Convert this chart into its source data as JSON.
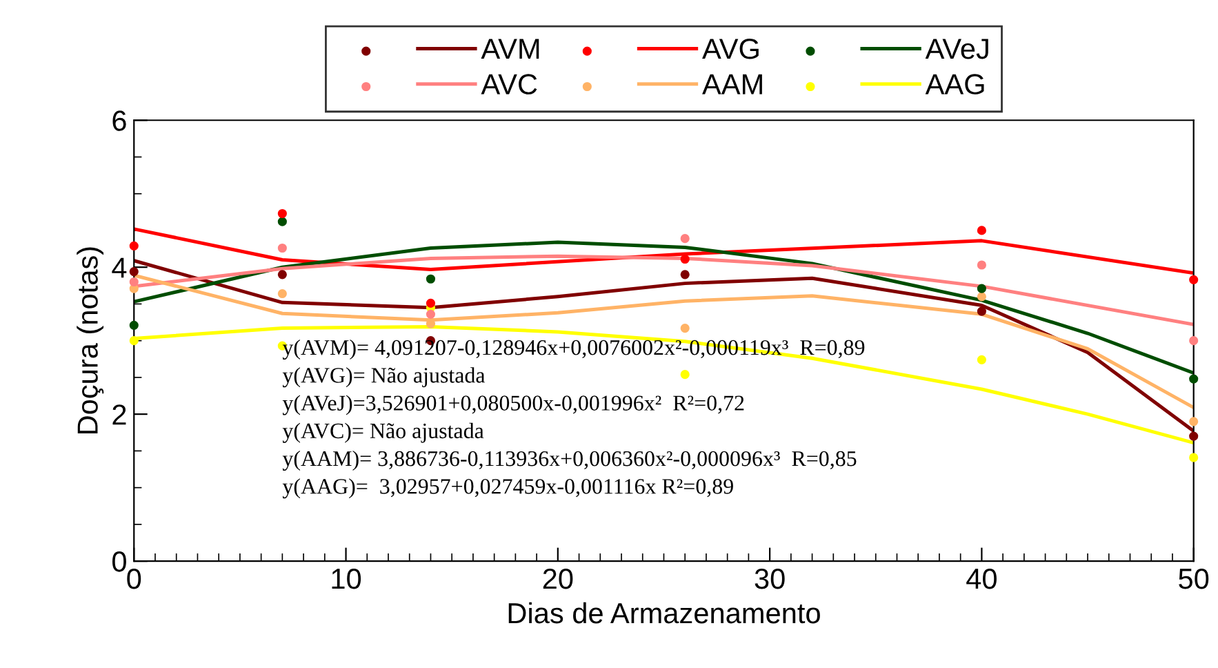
{
  "chart_data": {
    "type": "line",
    "xlabel": "Dias de Armazenamento",
    "ylabel": "Doçura (notas)",
    "xlim": [
      0,
      50
    ],
    "xticks": [
      0,
      10,
      20,
      30,
      40,
      50
    ],
    "ylim": [
      0,
      6
    ],
    "yticks": [
      0,
      2,
      4,
      6
    ],
    "grid": false,
    "legend": "top",
    "marker": "none",
    "series": [
      {
        "type": "scatter",
        "marker": "circle",
        "color": "#800000",
        "x": [
          0,
          7,
          14,
          26,
          40,
          50
        ],
        "values": [
          3.94,
          3.9,
          3.0,
          3.9,
          3.4,
          1.7
        ]
      },
      {
        "type": "scatter",
        "marker": "circle",
        "color": "#ff0000",
        "x": [
          0,
          7,
          14,
          26,
          40,
          50
        ],
        "values": [
          4.29,
          4.73,
          3.51,
          4.11,
          4.5,
          3.83
        ]
      },
      {
        "type": "scatter",
        "marker": "circle",
        "color": "#004d00",
        "x": [
          0,
          7,
          14,
          26,
          40,
          50
        ],
        "values": [
          3.21,
          4.62,
          3.84,
          null,
          3.71,
          2.48
        ]
      },
      {
        "type": "scatter",
        "marker": "circle",
        "color": "#ff8080",
        "x": [
          0,
          7,
          14,
          26,
          40,
          50
        ],
        "values": [
          3.8,
          4.26,
          3.36,
          4.39,
          4.03,
          3.0
        ]
      },
      {
        "type": "scatter",
        "marker": "circle",
        "color": "#ffb366",
        "x": [
          0,
          7,
          14,
          26,
          40,
          50
        ],
        "values": [
          3.71,
          3.64,
          3.23,
          3.17,
          3.6,
          1.9
        ]
      },
      {
        "type": "scatter",
        "marker": "circle",
        "color": "#ffff00",
        "x": [
          0,
          7,
          14,
          26,
          40,
          50
        ],
        "values": [
          3.0,
          2.93,
          3.45,
          2.54,
          2.74,
          1.41
        ]
      },
      {
        "name": "AVM",
        "color": "#800000",
        "x": [
          0,
          7,
          14,
          20,
          26,
          32,
          40,
          45,
          50
        ],
        "values": [
          4.09,
          3.52,
          3.45,
          3.6,
          3.78,
          3.85,
          3.48,
          2.84,
          1.77
        ]
      },
      {
        "name": "AVG",
        "color": "#ff0000",
        "x": [
          0,
          7,
          14,
          26,
          40,
          50
        ],
        "values": [
          4.52,
          4.1,
          3.97,
          4.18,
          4.36,
          3.92
        ]
      },
      {
        "name": "AVeJ",
        "color": "#004d00",
        "x": [
          0,
          7,
          14,
          20,
          26,
          32,
          40,
          45,
          50
        ],
        "values": [
          3.53,
          4.0,
          4.26,
          4.34,
          4.27,
          4.05,
          3.55,
          3.1,
          2.56
        ]
      },
      {
        "name": "AVC",
        "color": "#ff8080",
        "x": [
          0,
          7,
          14,
          20,
          26,
          32,
          40,
          50
        ],
        "values": [
          3.74,
          3.98,
          4.12,
          4.15,
          4.12,
          4.02,
          3.74,
          3.22
        ]
      },
      {
        "name": "AAM",
        "color": "#ffb366",
        "x": [
          0,
          7,
          14,
          20,
          26,
          32,
          40,
          45,
          50
        ],
        "values": [
          3.89,
          3.37,
          3.28,
          3.38,
          3.54,
          3.61,
          3.36,
          2.89,
          2.09
        ]
      },
      {
        "name": "AAG",
        "color": "#ffff00",
        "x": [
          0,
          7,
          14,
          20,
          26,
          32,
          40,
          45,
          50
        ],
        "values": [
          3.03,
          3.17,
          3.19,
          3.12,
          2.99,
          2.76,
          2.34,
          2.0,
          1.61
        ]
      }
    ],
    "annotations": [
      "y(AVM)= 4,091207-0,128946x+0,0076002x²-0,000119x³  R=0,89",
      "y(AVG)= Não ajustada",
      "y(AVeJ)=3,526901+0,080500x-0,001996x²  R²=0,72",
      "y(AVC)= Não ajustada",
      "y(AAM)= 3,886736-0,113936x+0,006360x²-0,000096x³  R=0,85",
      "y(AAG)=  3,02957+0,027459x-0,001116x R²=0,89"
    ]
  }
}
